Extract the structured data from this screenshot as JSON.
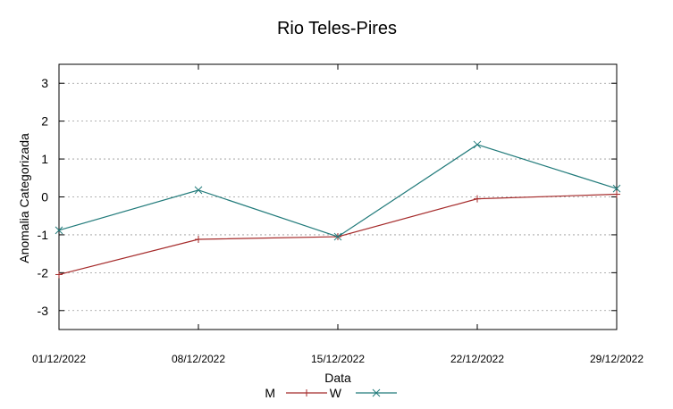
{
  "chart_data": {
    "type": "line",
    "title": "Rio Teles-Pires",
    "xlabel": "Data",
    "ylabel": "Anomalia Categorizada",
    "x": [
      "01/12/2022",
      "08/12/2022",
      "15/12/2022",
      "22/12/2022",
      "29/12/2022"
    ],
    "ylim": [
      -3.5,
      3.5
    ],
    "yticks": [
      "3",
      "2",
      "1",
      "0",
      "-1",
      "-2",
      "-3"
    ],
    "ytick_values": [
      3,
      2,
      1,
      0,
      -1,
      -2,
      -3
    ],
    "grid": "horizontal dotted",
    "legend_position": "bottom",
    "series": [
      {
        "name": "M",
        "values": [
          -2.05,
          -1.12,
          -1.05,
          -0.05,
          0.07
        ],
        "color": "#a52a2a",
        "marker": "plus"
      },
      {
        "name": "W",
        "values": [
          -0.88,
          0.18,
          -1.05,
          1.38,
          0.22
        ],
        "color": "#227b7b",
        "marker": "cross"
      }
    ]
  }
}
